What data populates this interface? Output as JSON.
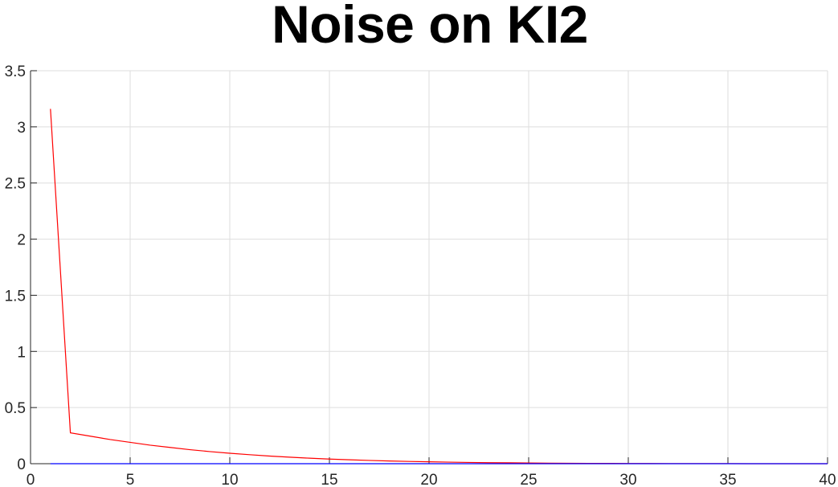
{
  "chart_data": {
    "type": "line",
    "title": "Noise on KI2",
    "xlabel": "",
    "ylabel": "",
    "xlim": [
      0,
      40
    ],
    "ylim": [
      0,
      3.5
    ],
    "xticks": [
      0,
      5,
      10,
      15,
      20,
      25,
      30,
      35,
      40
    ],
    "yticks": [
      0,
      0.5,
      1,
      1.5,
      2,
      2.5,
      3,
      3.5
    ],
    "xtick_labels": [
      "0",
      "5",
      "10",
      "15",
      "20",
      "25",
      "30",
      "35",
      "40"
    ],
    "ytick_labels": [
      "0",
      "0.5",
      "1",
      "1.5",
      "2",
      "2.5",
      "3",
      "3.5"
    ],
    "grid": true,
    "series": [
      {
        "color": "#ff0000",
        "x": [
          1,
          2,
          3,
          4,
          5,
          6,
          7,
          8,
          9,
          10,
          11,
          12,
          13,
          14,
          15,
          16,
          17,
          18,
          19,
          20,
          21,
          22,
          23,
          24,
          25,
          26,
          27,
          28,
          29,
          30,
          31,
          32,
          33,
          34,
          35,
          36,
          37,
          38,
          39,
          40
        ],
        "values": [
          3.16,
          0.275,
          0.245,
          0.215,
          0.19,
          0.165,
          0.145,
          0.125,
          0.108,
          0.093,
          0.08,
          0.068,
          0.058,
          0.049,
          0.041,
          0.035,
          0.029,
          0.024,
          0.02,
          0.017,
          0.014,
          0.011,
          0.009,
          0.008,
          0.006,
          0.005,
          0.004,
          0.003,
          0.003,
          0.002,
          0.002,
          0.001,
          0.001,
          0.001,
          0.001,
          0.0,
          0.0,
          0.0,
          0.0,
          0.0
        ]
      },
      {
        "color": "#0000ff",
        "x": [
          1,
          2,
          3,
          4,
          5,
          6,
          7,
          8,
          9,
          10,
          11,
          12,
          13,
          14,
          15,
          16,
          17,
          18,
          19,
          20,
          21,
          22,
          23,
          24,
          25,
          26,
          27,
          28,
          29,
          30,
          31,
          32,
          33,
          34,
          35,
          36,
          37,
          38,
          39,
          40
        ],
        "values": [
          0.0,
          0.0,
          0.0,
          0.0,
          0.0,
          0.0,
          0.0,
          0.0,
          0.0,
          0.0,
          0.0,
          0.0,
          0.0,
          0.0,
          0.0,
          0.0,
          0.0,
          0.0,
          0.0,
          0.0,
          0.0,
          0.0,
          0.0,
          0.0,
          0.0,
          0.0,
          0.0,
          0.0,
          0.0,
          0.0,
          0.0,
          0.0,
          0.0,
          0.0,
          0.0,
          0.0,
          0.0,
          0.0,
          0.0,
          0.0
        ]
      }
    ]
  }
}
